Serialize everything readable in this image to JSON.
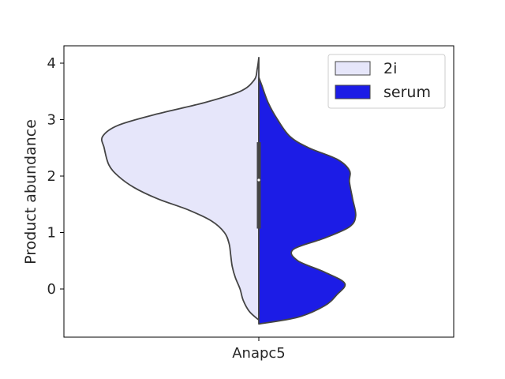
{
  "chart_data": {
    "type": "violin",
    "split": true,
    "categories": [
      "Anapc5"
    ],
    "xlabel": "",
    "ylabel": "Product abundance",
    "ylim": [
      -0.85,
      4.3
    ],
    "yticks": [
      0,
      1,
      2,
      3,
      4
    ],
    "legend": {
      "position": "top-right",
      "entries": [
        "2i",
        "serum"
      ]
    },
    "grid": false,
    "series": [
      {
        "name": "2i",
        "color": "#e6e6fa",
        "side": "left",
        "density_profile": [
          [
            -0.55,
            0.0
          ],
          [
            -0.4,
            0.06
          ],
          [
            -0.2,
            0.1
          ],
          [
            0.0,
            0.12
          ],
          [
            0.2,
            0.15
          ],
          [
            0.4,
            0.17
          ],
          [
            0.6,
            0.18
          ],
          [
            0.8,
            0.19
          ],
          [
            1.0,
            0.22
          ],
          [
            1.2,
            0.3
          ],
          [
            1.4,
            0.45
          ],
          [
            1.6,
            0.65
          ],
          [
            1.8,
            0.8
          ],
          [
            2.0,
            0.9
          ],
          [
            2.2,
            0.96
          ],
          [
            2.5,
            0.99
          ],
          [
            2.7,
            1.0
          ],
          [
            2.9,
            0.9
          ],
          [
            3.1,
            0.65
          ],
          [
            3.3,
            0.35
          ],
          [
            3.5,
            0.12
          ],
          [
            3.7,
            0.03
          ],
          [
            3.9,
            0.01
          ],
          [
            4.1,
            0.0
          ]
        ]
      },
      {
        "name": "serum",
        "color": "#1c1ce6",
        "side": "right",
        "density_profile": [
          [
            -0.62,
            0.0
          ],
          [
            -0.5,
            0.25
          ],
          [
            -0.3,
            0.42
          ],
          [
            -0.1,
            0.5
          ],
          [
            0.1,
            0.55
          ],
          [
            0.3,
            0.42
          ],
          [
            0.5,
            0.25
          ],
          [
            0.7,
            0.22
          ],
          [
            0.9,
            0.42
          ],
          [
            1.1,
            0.58
          ],
          [
            1.3,
            0.62
          ],
          [
            1.6,
            0.6
          ],
          [
            1.9,
            0.58
          ],
          [
            2.1,
            0.58
          ],
          [
            2.3,
            0.5
          ],
          [
            2.5,
            0.32
          ],
          [
            2.7,
            0.2
          ],
          [
            3.0,
            0.12
          ],
          [
            3.3,
            0.06
          ],
          [
            3.6,
            0.02
          ],
          [
            3.75,
            0.0
          ]
        ]
      }
    ],
    "inner_box": {
      "q1": 1.07,
      "median": 1.93,
      "q3": 2.6
    }
  }
}
